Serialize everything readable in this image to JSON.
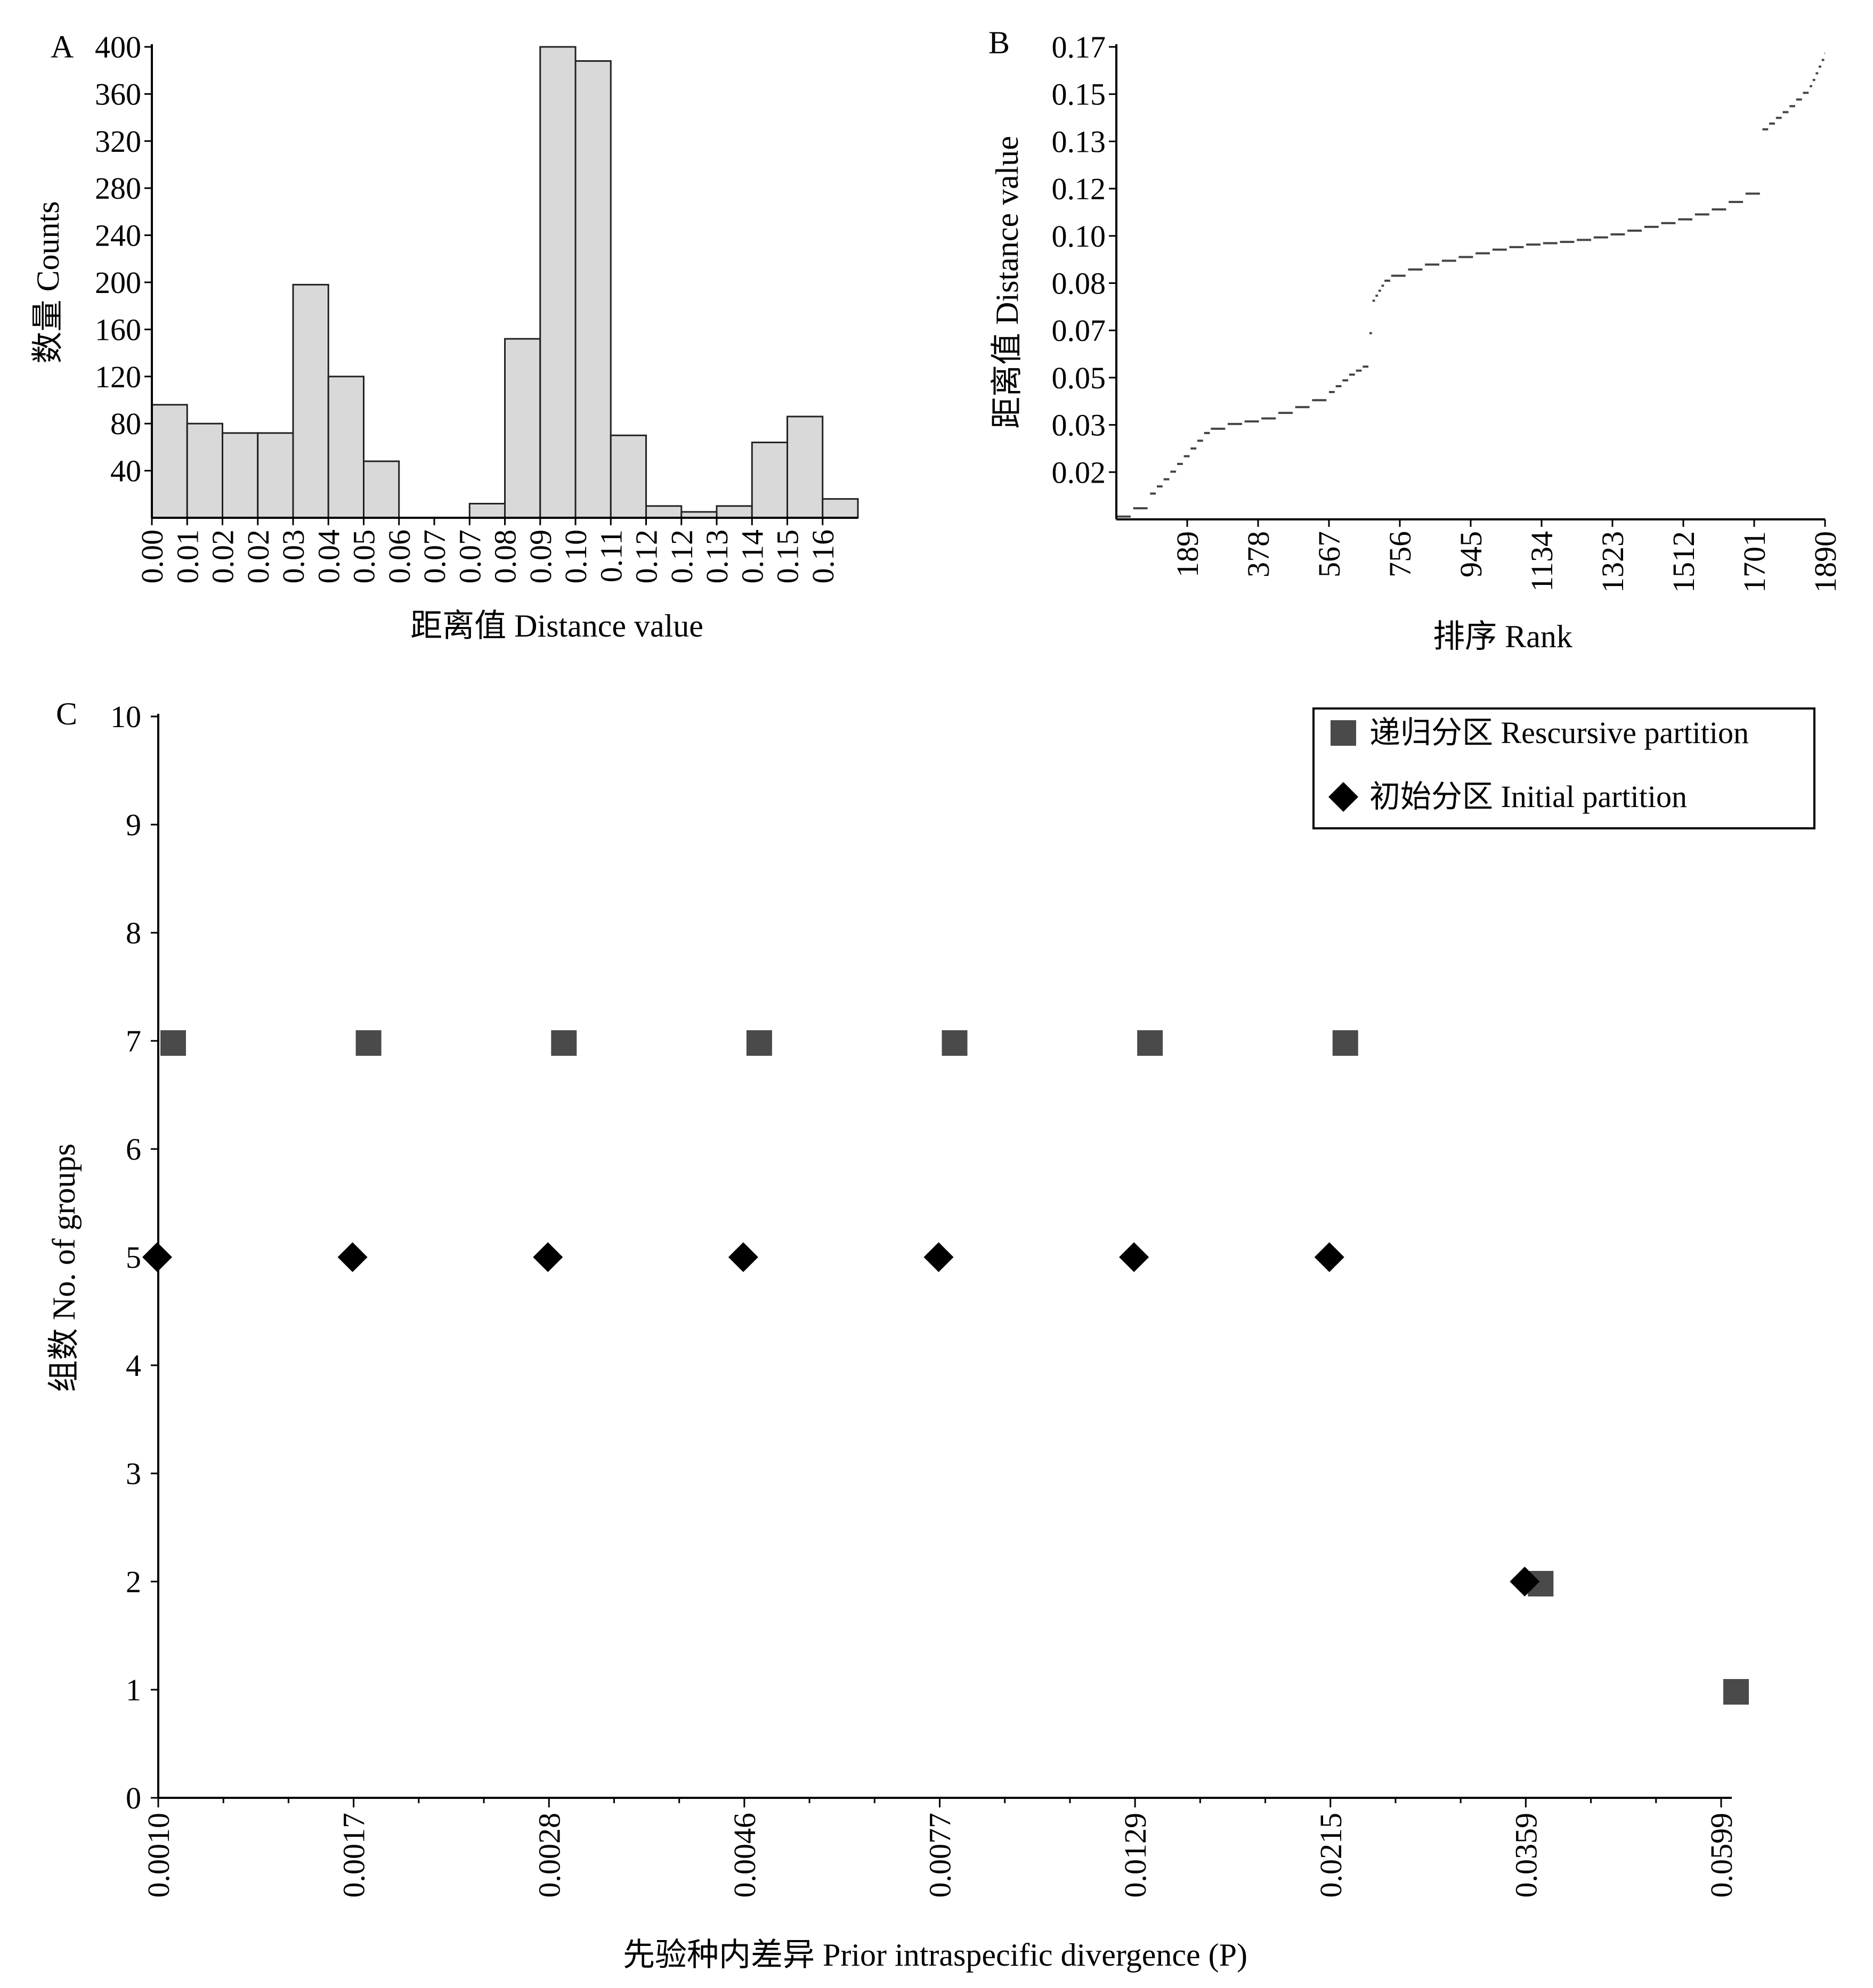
{
  "chart_data": [
    {
      "panel": "A",
      "type": "bar",
      "xlabel": "距离值 Distance value",
      "ylabel": "数量 Counts",
      "ylim": [
        0,
        400
      ],
      "yticks": [
        "40",
        "80",
        "120",
        "160",
        "200",
        "240",
        "280",
        "320",
        "360",
        "400"
      ],
      "categories": [
        "0.00",
        "0.01",
        "0.02",
        "0.02",
        "0.03",
        "0.04",
        "0.05",
        "0.06",
        "0.07",
        "0.07",
        "0.08",
        "0.09",
        "0.10",
        "0.11",
        "0.12",
        "0.12",
        "0.13",
        "0.14",
        "0.15",
        "0.16"
      ],
      "values": [
        96,
        80,
        72,
        72,
        198,
        120,
        48,
        0,
        0,
        12,
        152,
        400,
        388,
        70,
        10,
        5,
        10,
        64,
        86,
        16
      ]
    },
    {
      "panel": "B",
      "type": "scatter",
      "xlabel": "排序 Rank",
      "ylabel": "距离值 Distance value",
      "xlim": [
        0,
        1890
      ],
      "ylim": [
        0,
        0.17
      ],
      "xticks": [
        "189",
        "378",
        "567",
        "756",
        "945",
        "1134",
        "1323",
        "1512",
        "1701",
        "1890"
      ],
      "yticks": [
        "0.02",
        "0.03",
        "0.05",
        "0.07",
        "0.08",
        "0.10",
        "0.12",
        "0.13",
        "0.15",
        "0.17"
      ],
      "curve_x": [
        0,
        60,
        130,
        240,
        280,
        380,
        470,
        560,
        620,
        670,
        680,
        720,
        800,
        900,
        1000,
        1100,
        1200,
        1300,
        1400,
        1500,
        1600,
        1660,
        1690,
        1700,
        1720,
        1790,
        1850,
        1890
      ],
      "curve_y": [
        0.001,
        0.005,
        0.015,
        0.032,
        0.034,
        0.036,
        0.04,
        0.045,
        0.052,
        0.056,
        0.078,
        0.087,
        0.091,
        0.094,
        0.097,
        0.099,
        0.1,
        0.102,
        0.105,
        0.108,
        0.112,
        0.116,
        0.118,
        0.128,
        0.14,
        0.148,
        0.156,
        0.168
      ]
    },
    {
      "panel": "C",
      "type": "scatter",
      "xlabel": "先验种内差异 Prior intraspecific divergence (P)",
      "ylabel": "组数 No. of groups",
      "ylim": [
        0,
        10
      ],
      "yticks": [
        "0",
        "1",
        "2",
        "3",
        "4",
        "5",
        "6",
        "7",
        "8",
        "9",
        "10"
      ],
      "categories": [
        "0.0010",
        "0.0017",
        "0.0028",
        "0.0046",
        "0.0077",
        "0.0129",
        "0.0215",
        "0.0359",
        "0.0599"
      ],
      "legend_position": "top-right",
      "series": [
        {
          "name": "递归分区 Rescursive partition",
          "marker": "square",
          "color": "#4a4a4a",
          "x": [
            "0.0010",
            "0.0017",
            "0.0028",
            "0.0046",
            "0.0077",
            "0.0129",
            "0.0215",
            "0.0359",
            "0.0599"
          ],
          "values": [
            7,
            7,
            7,
            7,
            7,
            7,
            7,
            2,
            1
          ]
        },
        {
          "name": "初始分区 Initial partition",
          "marker": "diamond",
          "color": "#000000",
          "x": [
            "0.0010",
            "0.0017",
            "0.0028",
            "0.0046",
            "0.0077",
            "0.0129",
            "0.0215",
            "0.0359"
          ],
          "values": [
            5,
            5,
            5,
            5,
            5,
            5,
            5,
            2
          ]
        }
      ]
    }
  ],
  "panels": {
    "a_letter": "A",
    "b_letter": "B",
    "c_letter": "C"
  }
}
